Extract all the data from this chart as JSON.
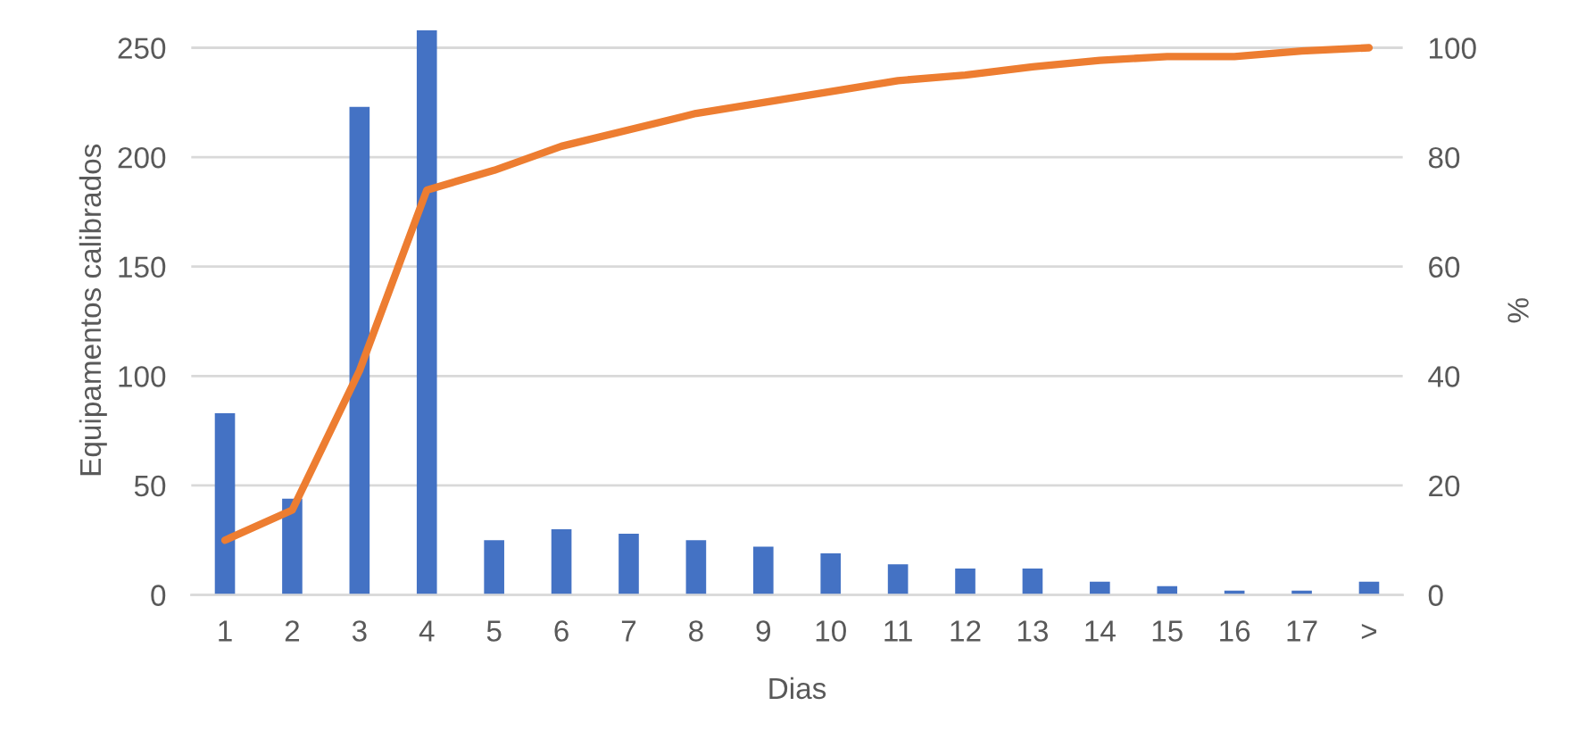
{
  "chart_data": {
    "type": "bar",
    "xlabel": "Dias",
    "ylabel": "Equipamentos calibrados",
    "y2label": "%",
    "categories": [
      "1",
      "2",
      "3",
      "4",
      "5",
      "6",
      "7",
      "8",
      "9",
      "10",
      "11",
      "12",
      "13",
      "14",
      "15",
      "16",
      "17",
      ">"
    ],
    "series": [
      {
        "color": "#4472c4",
        "values": [
          83,
          44,
          223,
          258,
          25,
          30,
          28,
          25,
          22,
          19,
          14,
          12,
          12,
          6,
          4,
          2,
          2,
          6
        ]
      },
      {
        "type": "line",
        "axis": "y2",
        "color": "#ed7d31",
        "values": [
          10,
          15.5,
          41,
          74,
          77.6,
          82,
          85,
          88,
          90,
          92,
          94,
          95,
          96.5,
          97.7,
          98.4,
          98.4,
          99.4,
          100
        ]
      }
    ],
    "ylim": [
      0,
      260
    ],
    "yticks": [
      0,
      50,
      100,
      150,
      200,
      250
    ],
    "y2lim": [
      0,
      104
    ],
    "y2ticks": [
      0,
      20,
      40,
      60,
      80,
      100
    ],
    "grid": "y",
    "marker": "none",
    "line_style": "solid"
  }
}
